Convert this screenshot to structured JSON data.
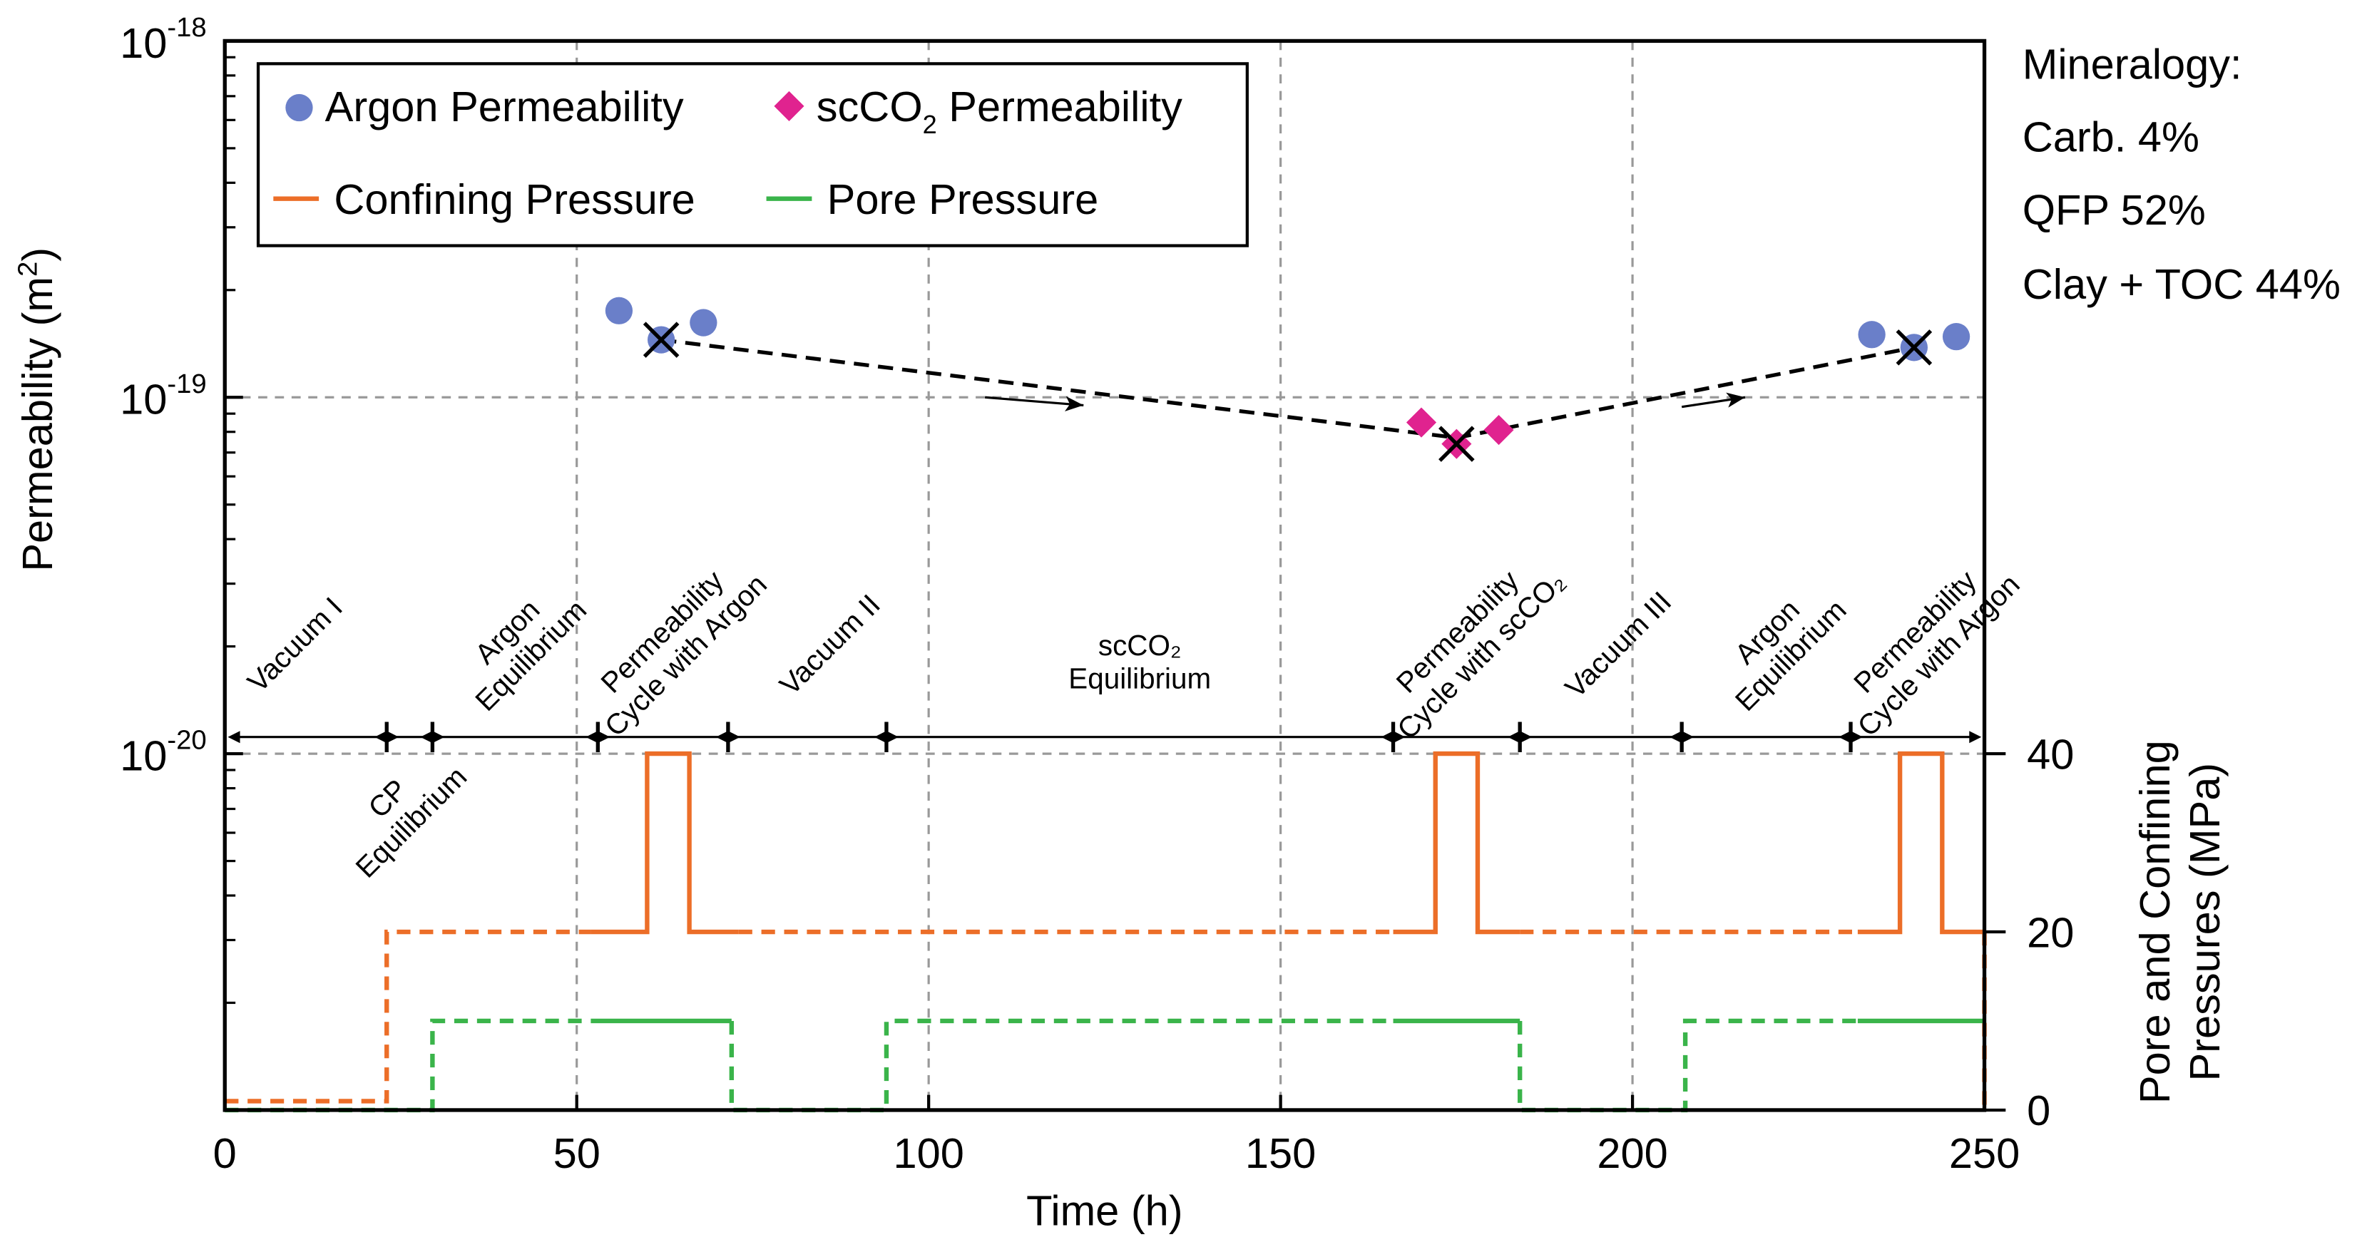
{
  "chart_data": {
    "type": "scatter+line",
    "xlabel": "Time (h)",
    "ylabel_left": "Permeability (m2)",
    "ylabel_left_base": "Permeability (m",
    "ylabel_left_sup": "2",
    "ylabel_left_close": ")",
    "ylabel_right_line1": "Pore and Confining",
    "ylabel_right_line2": "Pressures (MPa)",
    "xlim": [
      0,
      250
    ],
    "ylim_left": [
      1e-21,
      1e-18
    ],
    "ylim_right": [
      0,
      40
    ],
    "x_ticks": [
      "0",
      "50",
      "100",
      "150",
      "200",
      "250"
    ],
    "x_tick_values": [
      0,
      50,
      100,
      150,
      200,
      250
    ],
    "y_left_ticks": [
      {
        "base": "10",
        "exp": "-18",
        "value": 1e-18
      },
      {
        "base": "10",
        "exp": "-19",
        "value": 1e-19
      },
      {
        "base": "10",
        "exp": "-20",
        "value": 1e-20
      }
    ],
    "y_right_ticks": [
      "0",
      "20",
      "40"
    ],
    "y_right_tick_values": [
      0,
      20,
      40
    ],
    "legend": {
      "argon": "Argon Permeability",
      "scco2_pre": "scCO",
      "scco2_sub": "2",
      "scco2_post": " Permeability",
      "confining": "Confining Pressure",
      "pore": "Pore Pressure"
    },
    "colors": {
      "argon": "#6a7fc9",
      "scco2": "#e0238f",
      "confining": "#ec6e28",
      "pore": "#3ab44a",
      "grid": "#999999"
    },
    "argon_points": [
      [
        56,
        1.75e-19
      ],
      [
        62,
        1.45e-19
      ],
      [
        68,
        1.62e-19
      ],
      [
        234,
        1.5e-19
      ],
      [
        240,
        1.38e-19
      ],
      [
        246,
        1.48e-19
      ]
    ],
    "scco2_points": [
      [
        170,
        8.5e-20
      ],
      [
        175,
        7.4e-20
      ],
      [
        181,
        8.1e-20
      ]
    ],
    "mean_markers": [
      [
        62,
        1.45e-19
      ],
      [
        175,
        7.4e-20
      ],
      [
        240,
        1.38e-19
      ]
    ],
    "trend_line": [
      [
        62,
        1.45e-19
      ],
      [
        175,
        7.7e-20
      ],
      [
        240,
        1.38e-19
      ]
    ],
    "trend_arrows": [
      [
        [
          108,
          1e-19
        ],
        [
          122,
          9.5e-20
        ]
      ],
      [
        [
          207,
          9.4e-20
        ],
        [
          216,
          1e-19
        ]
      ]
    ],
    "confining_pressure": [
      {
        "style": "dashed",
        "points": [
          [
            0,
            1
          ],
          [
            23,
            1
          ],
          [
            23,
            20
          ],
          [
            52,
            20
          ]
        ]
      },
      {
        "style": "solid",
        "points": [
          [
            52,
            20
          ],
          [
            60,
            20
          ],
          [
            60,
            40
          ],
          [
            66,
            40
          ],
          [
            66,
            20
          ],
          [
            73,
            20
          ]
        ]
      },
      {
        "style": "dashed",
        "points": [
          [
            73,
            20
          ],
          [
            166,
            20
          ]
        ]
      },
      {
        "style": "solid",
        "points": [
          [
            166,
            20
          ],
          [
            172,
            20
          ],
          [
            172,
            40
          ],
          [
            178,
            40
          ],
          [
            178,
            20
          ],
          [
            184,
            20
          ]
        ]
      },
      {
        "style": "dashed",
        "points": [
          [
            184,
            20
          ],
          [
            232,
            20
          ]
        ]
      },
      {
        "style": "solid",
        "points": [
          [
            232,
            20
          ],
          [
            238,
            20
          ],
          [
            238,
            40
          ],
          [
            244,
            40
          ],
          [
            244,
            20
          ],
          [
            250,
            20
          ]
        ]
      },
      {
        "style": "dashed",
        "points": [
          [
            250,
            20
          ],
          [
            250,
            0
          ]
        ]
      }
    ],
    "pore_pressure": [
      {
        "style": "dashed",
        "points": [
          [
            0,
            0
          ],
          [
            29.5,
            0
          ],
          [
            29.5,
            10
          ],
          [
            52,
            10
          ]
        ]
      },
      {
        "style": "solid",
        "points": [
          [
            52,
            10
          ],
          [
            72,
            10
          ]
        ]
      },
      {
        "style": "dashed",
        "points": [
          [
            72,
            10
          ],
          [
            72,
            0
          ],
          [
            94,
            0
          ],
          [
            94,
            10
          ],
          [
            166,
            10
          ]
        ]
      },
      {
        "style": "solid",
        "points": [
          [
            166,
            10
          ],
          [
            184,
            10
          ]
        ]
      },
      {
        "style": "dashed",
        "points": [
          [
            184,
            10
          ],
          [
            184,
            0
          ],
          [
            207.5,
            0
          ],
          [
            207.5,
            10
          ],
          [
            232,
            10
          ]
        ]
      },
      {
        "style": "solid",
        "points": [
          [
            232,
            10
          ],
          [
            250,
            10
          ]
        ]
      }
    ],
    "phase_boundaries": [
      23,
      29.5,
      53,
      71.5,
      94,
      166,
      184,
      207,
      231
    ],
    "phase_labels": [
      {
        "x": 8,
        "lines": [
          "Vacuum I"
        ],
        "below": false
      },
      {
        "x": 23,
        "lines": [
          "CP",
          "Equilibrium"
        ],
        "below": true
      },
      {
        "x": 40,
        "lines": [
          "Argon",
          "Equilibrium"
        ],
        "below": false
      },
      {
        "x": 62,
        "lines": [
          "Permeability",
          "Cycle with Argon"
        ],
        "below": false
      },
      {
        "x": 84,
        "lines": [
          "Vacuum II"
        ],
        "below": false
      },
      {
        "x": 130,
        "lines": [
          "scCO₂",
          "Equilibrium"
        ],
        "below": false,
        "horizontal": true
      },
      {
        "x": 175,
        "lines": [
          "Permeability",
          "Cycle with scCO₂"
        ],
        "below": false
      },
      {
        "x": 196,
        "lines": [
          "Vacuum III"
        ],
        "below": false
      },
      {
        "x": 219,
        "lines": [
          "Argon",
          "Equilibrium"
        ],
        "below": false
      },
      {
        "x": 240,
        "lines": [
          "Permeability",
          "Cycle with Argon"
        ],
        "below": false
      }
    ],
    "annotation": [
      "Mineralogy:",
      "Carb. 4%",
      "QFP 52%",
      "Clay + TOC 44%"
    ]
  }
}
